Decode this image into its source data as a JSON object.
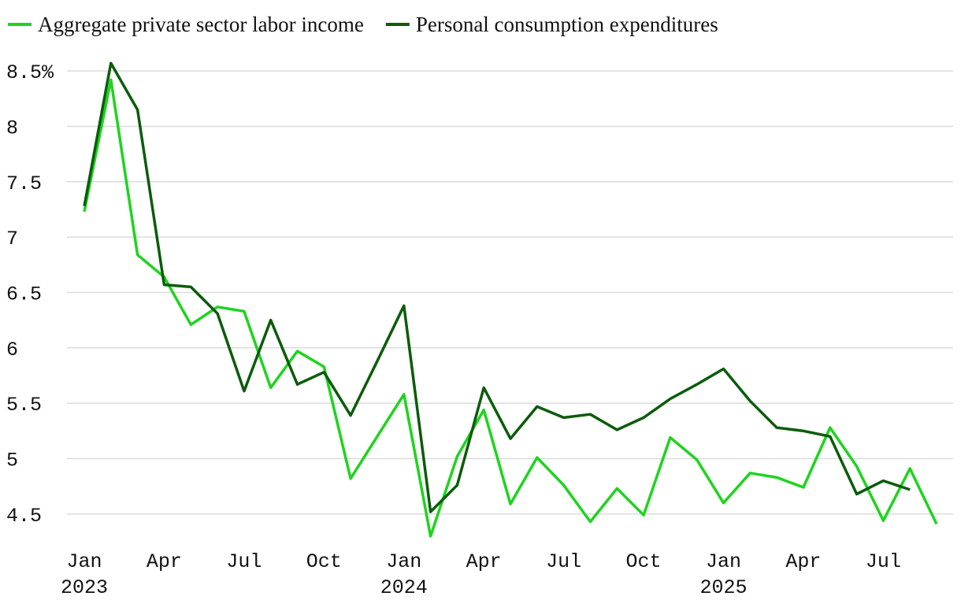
{
  "chart_data": {
    "type": "line",
    "categories": [
      "Jan",
      null,
      null,
      "Apr",
      null,
      null,
      "Jul",
      null,
      null,
      "Oct",
      null,
      null,
      "Jan",
      null,
      null,
      "Apr",
      null,
      null,
      "Jul",
      null,
      null,
      "Oct",
      null,
      null,
      "Jan",
      null,
      null,
      "Apr",
      null,
      null,
      "Jul",
      null,
      null
    ],
    "years": [
      "2023",
      "2024",
      "2025"
    ],
    "series": [
      {
        "name": "Aggregate private sector labor income",
        "color": "#1ed41e",
        "values": [
          7.23,
          8.42,
          6.84,
          6.64,
          6.21,
          6.37,
          6.33,
          5.64,
          5.97,
          5.83,
          4.82,
          5.2,
          5.58,
          4.3,
          5.02,
          5.44,
          4.59,
          5.01,
          4.76,
          4.43,
          4.73,
          4.49,
          5.19,
          4.99,
          4.6,
          4.87,
          4.83,
          4.74,
          5.28,
          4.93,
          4.44,
          4.91,
          4.41
        ]
      },
      {
        "name": "Personal consumption expenditures",
        "color": "#0b5c0b",
        "values": [
          7.28,
          8.57,
          8.15,
          6.57,
          6.55,
          6.31,
          5.61,
          6.25,
          5.67,
          5.78,
          5.39,
          5.88,
          6.38,
          4.52,
          4.76,
          5.64,
          5.18,
          5.47,
          5.37,
          5.4,
          5.26,
          5.37,
          5.54,
          5.67,
          5.81,
          5.52,
          5.28,
          5.25,
          5.2,
          4.68,
          4.8,
          4.72,
          null
        ]
      }
    ],
    "ylim": [
      4.2,
      8.7
    ],
    "yticks": [
      4.5,
      5,
      5.5,
      6,
      6.5,
      7,
      7.5,
      8,
      {
        "value": 8.5,
        "label": "8.5%"
      }
    ],
    "grid": true,
    "legend": "top-left"
  }
}
